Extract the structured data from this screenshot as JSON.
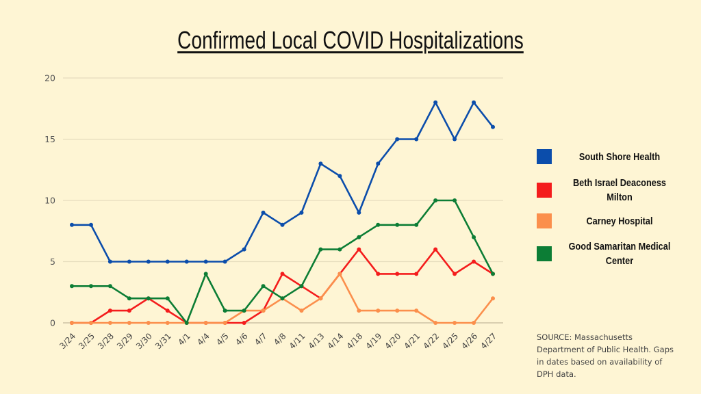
{
  "chart_data": {
    "type": "line",
    "title": "Confirmed Local COVID Hospitalizations",
    "xlabel": "",
    "ylabel": "",
    "ylim": [
      0,
      20
    ],
    "yticks": [
      0,
      5,
      10,
      15,
      20
    ],
    "grid": true,
    "legend_position": "right",
    "x": [
      "3/24",
      "3/25",
      "3/28",
      "3/29",
      "3/30",
      "3/31",
      "4/1",
      "4/4",
      "4/5",
      "4/6",
      "4/7",
      "4/8",
      "4/11",
      "4/13",
      "4/14",
      "4/18",
      "4/19",
      "4/20",
      "4/21",
      "4/22",
      "4/25",
      "4/26",
      "4/27"
    ],
    "series": [
      {
        "name": "South Shore Health",
        "color": "#0b4dab",
        "values": [
          8,
          8,
          5,
          5,
          5,
          5,
          5,
          5,
          5,
          6,
          9,
          8,
          9,
          13,
          12,
          9,
          13,
          15,
          15,
          18,
          15,
          18,
          16
        ]
      },
      {
        "name": "Beth Israel Deaconess Milton",
        "color": "#f41c1c",
        "values": [
          0,
          0,
          1,
          1,
          2,
          1,
          0,
          0,
          0,
          0,
          1,
          4,
          3,
          2,
          4,
          6,
          4,
          4,
          4,
          6,
          4,
          5,
          4
        ]
      },
      {
        "name": "Carney Hospital",
        "color": "#fb8f4c",
        "values": [
          0,
          0,
          0,
          0,
          0,
          0,
          0,
          0,
          0,
          1,
          1,
          2,
          1,
          2,
          4,
          1,
          1,
          1,
          1,
          0,
          0,
          0,
          2
        ]
      },
      {
        "name": "Good Samaritan Medical Center",
        "color": "#0c7d35",
        "values": [
          3,
          3,
          3,
          2,
          2,
          2,
          0,
          4,
          1,
          1,
          3,
          2,
          3,
          6,
          6,
          7,
          8,
          8,
          8,
          10,
          10,
          7,
          4
        ]
      }
    ],
    "source_note": "SOURCE: Massachusetts Department of Public Health. Gaps in dates based on availability of DPH data."
  },
  "legend": [
    {
      "label": "South Shore Health",
      "color": "#0b4dab"
    },
    {
      "label": "Beth Israel Deaconess Milton",
      "color": "#f41c1c"
    },
    {
      "label": "Carney Hospital",
      "color": "#fb8f4c"
    },
    {
      "label": "Good Samaritan Medical Center",
      "color": "#0c7d35"
    }
  ]
}
